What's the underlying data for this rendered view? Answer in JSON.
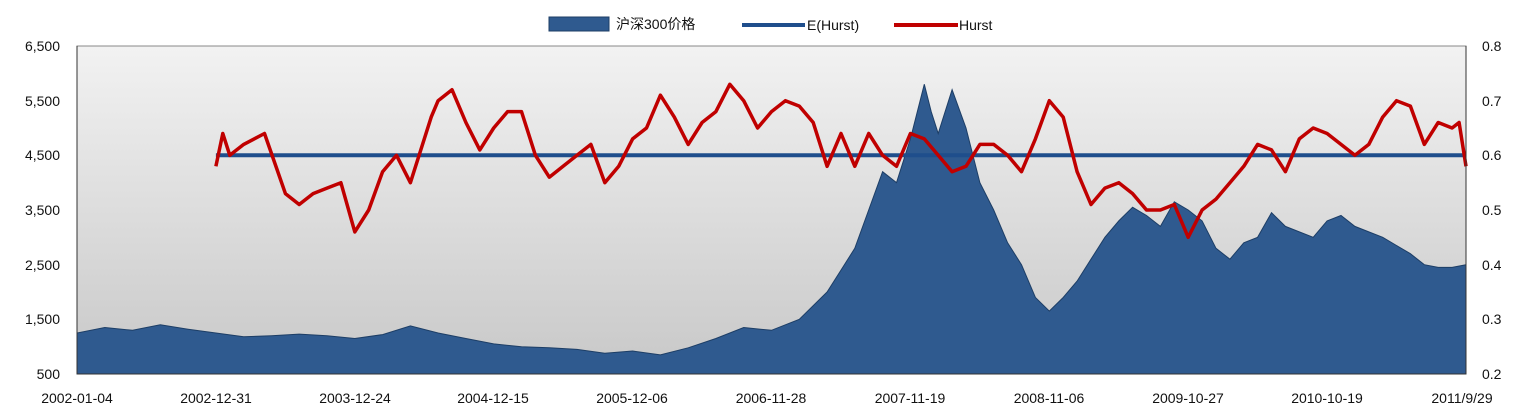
{
  "chart_data": {
    "type": "area+line",
    "legend": [
      {
        "name": "沪深300价格",
        "kind": "area",
        "color": "#2f5a8f"
      },
      {
        "name": "E(Hurst)",
        "kind": "line",
        "color": "#1f4e8c"
      },
      {
        "name": "Hurst",
        "kind": "line",
        "color": "#c00000"
      }
    ],
    "legend_position": "top-center",
    "y_left": {
      "min": 500,
      "max": 6500,
      "ticks": [
        "6,500",
        "5,500",
        "4,500",
        "3,500",
        "2,500",
        "1,500",
        "500"
      ]
    },
    "y_right": {
      "min": 0.2,
      "max": 0.8,
      "ticks": [
        "0.8",
        "0.7",
        "0.6",
        "0.5",
        "0.4",
        "0.3",
        "0.2"
      ]
    },
    "x_tick_labels": [
      "2002-01-04",
      "2002-12-31",
      "2003-12-24",
      "2004-12-15",
      "2005-12-06",
      "2006-11-28",
      "2007-11-19",
      "2008-11-06",
      "2009-10-27",
      "2010-10-19",
      "2011/9/29"
    ],
    "grid": false,
    "background": "gradient-gray",
    "series_price": {
      "name": "沪深300价格",
      "x": [
        0,
        0.2,
        0.4,
        0.6,
        0.8,
        1.0,
        1.2,
        1.4,
        1.6,
        1.8,
        2.0,
        2.2,
        2.4,
        2.6,
        2.8,
        3.0,
        3.2,
        3.4,
        3.6,
        3.8,
        4.0,
        4.2,
        4.4,
        4.6,
        4.8,
        5.0,
        5.2,
        5.4,
        5.5,
        5.6,
        5.7,
        5.8,
        5.9,
        6.0,
        6.1,
        6.15,
        6.2,
        6.3,
        6.4,
        6.5,
        6.6,
        6.7,
        6.8,
        6.9,
        7.0,
        7.1,
        7.2,
        7.3,
        7.4,
        7.5,
        7.6,
        7.7,
        7.8,
        7.9,
        8.0,
        8.1,
        8.2,
        8.3,
        8.4,
        8.5,
        8.6,
        8.7,
        8.8,
        8.9,
        9.0,
        9.1,
        9.2,
        9.3,
        9.4,
        9.5,
        9.6,
        9.7,
        9.8,
        9.9,
        10.0
      ],
      "values": [
        1250,
        1350,
        1300,
        1400,
        1320,
        1250,
        1180,
        1200,
        1230,
        1200,
        1150,
        1220,
        1380,
        1250,
        1150,
        1050,
        1000,
        980,
        950,
        880,
        920,
        850,
        980,
        1150,
        1350,
        1300,
        1500,
        2000,
        2400,
        2800,
        3500,
        4200,
        4000,
        4800,
        5800,
        5300,
        4900,
        5700,
        5000,
        4000,
        3500,
        2900,
        2500,
        1900,
        1650,
        1900,
        2200,
        2600,
        3000,
        3300,
        3550,
        3400,
        3200,
        3650,
        3500,
        3300,
        2800,
        2600,
        2900,
        3000,
        3450,
        3200,
        3100,
        3000,
        3300,
        3400,
        3200,
        3100,
        3000,
        2850,
        2700,
        2500,
        2450,
        2450,
        2500
      ]
    },
    "series_e_hurst": {
      "name": "E(Hurst)",
      "x": [
        1.0,
        10.0
      ],
      "values": [
        0.6,
        0.6
      ]
    },
    "series_hurst": {
      "name": "Hurst",
      "x": [
        1.0,
        1.05,
        1.1,
        1.2,
        1.35,
        1.5,
        1.6,
        1.7,
        1.8,
        1.9,
        2.0,
        2.1,
        2.2,
        2.3,
        2.4,
        2.5,
        2.55,
        2.6,
        2.7,
        2.8,
        2.9,
        3.0,
        3.1,
        3.2,
        3.3,
        3.4,
        3.5,
        3.6,
        3.7,
        3.8,
        3.9,
        4.0,
        4.1,
        4.2,
        4.3,
        4.4,
        4.5,
        4.6,
        4.7,
        4.8,
        4.9,
        5.0,
        5.1,
        5.2,
        5.3,
        5.4,
        5.5,
        5.6,
        5.7,
        5.8,
        5.9,
        6.0,
        6.1,
        6.2,
        6.3,
        6.4,
        6.5,
        6.6,
        6.7,
        6.8,
        6.9,
        7.0,
        7.1,
        7.2,
        7.3,
        7.4,
        7.5,
        7.6,
        7.7,
        7.8,
        7.9,
        8.0,
        8.1,
        8.2,
        8.3,
        8.4,
        8.5,
        8.6,
        8.7,
        8.8,
        8.9,
        9.0,
        9.1,
        9.2,
        9.3,
        9.4,
        9.5,
        9.6,
        9.7,
        9.8,
        9.9,
        9.95,
        10.0
      ],
      "values": [
        0.58,
        0.64,
        0.6,
        0.62,
        0.64,
        0.53,
        0.51,
        0.53,
        0.54,
        0.55,
        0.46,
        0.5,
        0.57,
        0.6,
        0.55,
        0.63,
        0.67,
        0.7,
        0.72,
        0.66,
        0.61,
        0.65,
        0.68,
        0.68,
        0.6,
        0.56,
        0.58,
        0.6,
        0.62,
        0.55,
        0.58,
        0.63,
        0.65,
        0.71,
        0.67,
        0.62,
        0.66,
        0.68,
        0.73,
        0.7,
        0.65,
        0.68,
        0.7,
        0.69,
        0.66,
        0.58,
        0.64,
        0.58,
        0.64,
        0.6,
        0.58,
        0.64,
        0.63,
        0.6,
        0.57,
        0.58,
        0.62,
        0.62,
        0.6,
        0.57,
        0.63,
        0.7,
        0.67,
        0.57,
        0.51,
        0.54,
        0.55,
        0.53,
        0.5,
        0.5,
        0.51,
        0.45,
        0.5,
        0.52,
        0.55,
        0.58,
        0.62,
        0.61,
        0.57,
        0.63,
        0.65,
        0.64,
        0.62,
        0.6,
        0.62,
        0.67,
        0.7,
        0.69,
        0.62,
        0.66,
        0.65,
        0.66,
        0.58
      ]
    }
  }
}
